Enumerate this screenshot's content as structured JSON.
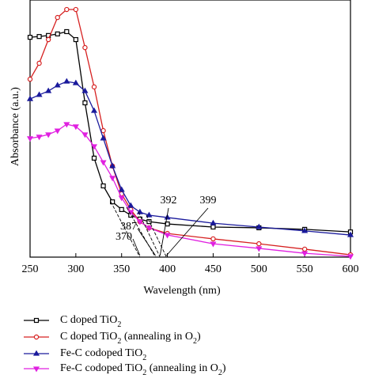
{
  "chart_data": {
    "type": "line",
    "x_label": "Wavelength (nm)",
    "y_label": "Absorbance (a.u.)",
    "x": [
      250,
      260,
      270,
      280,
      290,
      300,
      310,
      320,
      330,
      340,
      350,
      360,
      370,
      380,
      400,
      450,
      500,
      550,
      600
    ],
    "xlim": [
      250,
      600
    ],
    "xticks": [
      250,
      300,
      350,
      400,
      450,
      500,
      550,
      600
    ],
    "ylim": [
      0,
      1
    ],
    "series": [
      {
        "name": "C doped TiO2",
        "color": "#000000",
        "marker": "square",
        "values": [
          0.855,
          0.858,
          0.862,
          0.868,
          0.877,
          0.846,
          0.6,
          0.385,
          0.277,
          0.215,
          0.185,
          0.163,
          0.148,
          0.138,
          0.129,
          0.117,
          0.114,
          0.108,
          0.098
        ]
      },
      {
        "name": "C doped TiO2 (annealing in O2)",
        "color": "#d62020",
        "marker": "circle",
        "values": [
          0.692,
          0.754,
          0.846,
          0.932,
          0.963,
          0.963,
          0.815,
          0.662,
          0.492,
          0.354,
          0.246,
          0.185,
          0.138,
          0.114,
          0.092,
          0.071,
          0.052,
          0.031,
          0.009
        ]
      },
      {
        "name": "Fe-C codoped TiO2",
        "color": "#1a1a9c",
        "marker": "triangle-up",
        "values": [
          0.615,
          0.631,
          0.646,
          0.668,
          0.683,
          0.677,
          0.646,
          0.569,
          0.462,
          0.354,
          0.262,
          0.2,
          0.175,
          0.163,
          0.154,
          0.132,
          0.117,
          0.102,
          0.086
        ]
      },
      {
        "name": "Fe-C codoped TiO2 (annealing in O2)",
        "color": "#e020e0",
        "marker": "triangle-down",
        "values": [
          0.462,
          0.468,
          0.477,
          0.492,
          0.517,
          0.508,
          0.477,
          0.431,
          0.369,
          0.308,
          0.231,
          0.175,
          0.138,
          0.114,
          0.086,
          0.052,
          0.034,
          0.015,
          0.003
        ]
      }
    ],
    "edge_wavelengths": [
      370,
      387,
      392,
      399
    ]
  }
}
